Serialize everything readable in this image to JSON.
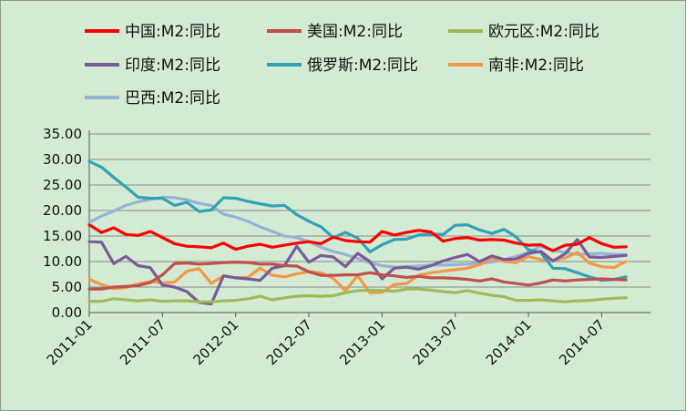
{
  "chart_data": {
    "type": "line",
    "title": "",
    "xlabel": "",
    "ylabel": "",
    "ylim": [
      0,
      35
    ],
    "yticks": [
      "0.00",
      "5.00",
      "10.00",
      "15.00",
      "20.00",
      "25.00",
      "30.00",
      "35.00"
    ],
    "x_tick_labels": [
      "2011-01",
      "2011-07",
      "2012-01",
      "2012-07",
      "2013-01",
      "2013-07",
      "2014-01",
      "2014-07"
    ],
    "x_tick_months": [
      0,
      6,
      12,
      18,
      24,
      30,
      36,
      42
    ],
    "x_range_months": [
      0,
      46
    ],
    "grid": "horizontal",
    "legend_position": "top",
    "series": [
      {
        "name": "中国:M2:同比",
        "color": "#ff0000",
        "values": [
          17.2,
          15.7,
          16.6,
          15.3,
          15.1,
          15.9,
          14.7,
          13.5,
          13.0,
          12.9,
          12.7,
          13.6,
          12.4,
          13.0,
          13.4,
          12.8,
          13.2,
          13.6,
          13.9,
          13.5,
          14.8,
          14.1,
          13.9,
          13.8,
          15.9,
          15.2,
          15.7,
          16.1,
          15.8,
          14.0,
          14.5,
          14.7,
          14.2,
          14.3,
          14.2,
          13.6,
          13.2,
          13.3,
          12.1,
          13.2,
          13.4,
          14.7,
          13.5,
          12.8,
          12.9
        ]
      },
      {
        "name": "美国:M2:同比",
        "color": "#c0504d",
        "values": [
          4.6,
          4.6,
          5.0,
          5.1,
          5.3,
          5.9,
          7.4,
          9.6,
          9.7,
          9.5,
          9.6,
          9.8,
          9.9,
          9.8,
          9.5,
          9.5,
          9.2,
          9.1,
          8.0,
          7.3,
          7.3,
          7.4,
          7.4,
          7.8,
          7.4,
          7.2,
          6.9,
          7.1,
          6.8,
          6.8,
          6.7,
          6.5,
          6.2,
          6.6,
          6.0,
          5.7,
          5.4,
          5.8,
          6.4,
          6.2,
          6.4,
          6.5,
          6.6,
          6.5,
          6.4
        ]
      },
      {
        "name": "欧元区:M2:同比",
        "color": "#9bbb59",
        "values": [
          2.2,
          2.2,
          2.7,
          2.5,
          2.3,
          2.5,
          2.2,
          2.3,
          2.3,
          2.1,
          2.1,
          2.3,
          2.4,
          2.7,
          3.2,
          2.5,
          2.9,
          3.2,
          3.3,
          3.2,
          3.3,
          3.9,
          4.3,
          4.4,
          4.3,
          4.2,
          4.6,
          4.6,
          4.4,
          4.1,
          3.9,
          4.3,
          3.8,
          3.4,
          3.1,
          2.4,
          2.4,
          2.5,
          2.3,
          2.1,
          2.3,
          2.4,
          2.6,
          2.8,
          2.9
        ]
      },
      {
        "name": "印度:M2:同比",
        "color": "#7a5a98",
        "values": [
          13.9,
          13.8,
          9.6,
          11.0,
          9.2,
          8.8,
          5.4,
          5.0,
          4.1,
          2.0,
          1.7,
          7.2,
          6.8,
          6.6,
          6.3,
          8.7,
          9.2,
          13.0,
          9.9,
          11.2,
          10.9,
          9.0,
          11.6,
          10.0,
          6.6,
          8.7,
          8.9,
          8.5,
          9.2,
          10.1,
          10.8,
          11.4,
          10.0,
          11.1,
          10.4,
          10.5,
          11.6,
          12.0,
          10.1,
          11.5,
          14.3,
          10.9,
          10.8,
          11.0,
          11.2
        ]
      },
      {
        "name": "俄罗斯:M2:同比",
        "color": "#31a2b6",
        "values": [
          29.6,
          28.5,
          26.5,
          24.6,
          22.6,
          22.4,
          22.4,
          21.0,
          21.6,
          19.8,
          20.1,
          22.5,
          22.4,
          21.8,
          21.3,
          20.9,
          21.0,
          19.2,
          17.9,
          16.8,
          14.7,
          15.7,
          14.6,
          11.9,
          13.3,
          14.3,
          14.4,
          15.2,
          15.4,
          15.3,
          17.1,
          17.2,
          16.2,
          15.5,
          16.3,
          14.8,
          12.3,
          11.8,
          8.7,
          8.6,
          7.8,
          7.0,
          6.3,
          6.5,
          7.0
        ]
      },
      {
        "name": "南非:M2:同比",
        "color": "#f79646",
        "values": [
          6.5,
          5.5,
          4.7,
          4.9,
          5.6,
          6.1,
          5.8,
          6.0,
          8.1,
          8.6,
          5.7,
          7.2,
          6.8,
          6.9,
          8.7,
          7.3,
          7.0,
          7.6,
          8.0,
          7.8,
          6.7,
          4.3,
          7.2,
          3.9,
          4.0,
          5.5,
          5.7,
          7.3,
          7.8,
          8.1,
          8.4,
          8.7,
          9.4,
          10.6,
          10.0,
          9.8,
          11.0,
          10.4,
          10.3,
          10.7,
          11.8,
          9.7,
          9.0,
          8.8,
          10.0
        ]
      },
      {
        "name": "巴西:M2:同比",
        "color": "#95b3d7",
        "values": [
          17.7,
          18.9,
          19.9,
          21.0,
          21.7,
          22.2,
          22.6,
          22.5,
          22.1,
          21.4,
          21.0,
          19.3,
          18.7,
          17.9,
          16.8,
          15.9,
          15.0,
          14.7,
          13.9,
          12.8,
          12.0,
          11.4,
          10.6,
          9.8,
          9.2,
          8.9,
          9.0,
          9.1,
          9.3,
          9.3,
          9.4,
          9.5,
          9.7,
          9.9,
          10.4,
          11.0,
          11.8,
          13.0,
          12.2,
          11.8,
          11.4,
          11.5,
          11.6,
          11.4,
          11.4
        ]
      }
    ]
  }
}
